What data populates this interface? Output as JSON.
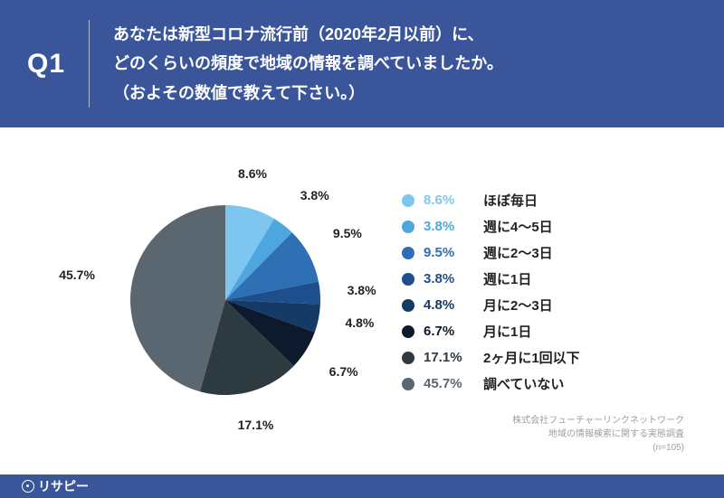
{
  "header": {
    "bg_color": "#3a5599",
    "badge": "Q1",
    "question_lines": [
      "あなたは新型コロナ流行前（2020年2月以前）に、",
      "どのくらいの頻度で地域の情報を調べていましたか。",
      "（およその数値で教えて下さい。）"
    ]
  },
  "chart": {
    "type": "pie",
    "background_color": "#ffffff",
    "start_angle_deg": -90,
    "radius": 105,
    "slices": [
      {
        "label": "ほぼ毎日",
        "value": 8.6,
        "color": "#7ec6ef",
        "pct_text": "8.6%"
      },
      {
        "label": "週に4〜5日",
        "value": 3.8,
        "color": "#4ea6de",
        "pct_text": "3.8%"
      },
      {
        "label": "週に2〜3日",
        "value": 9.5,
        "color": "#2f6fb4",
        "pct_text": "9.5%"
      },
      {
        "label": "週に1日",
        "value": 3.8,
        "color": "#1f4e8c",
        "pct_text": "3.8%"
      },
      {
        "label": "月に2〜3日",
        "value": 4.8,
        "color": "#163a66",
        "pct_text": "4.8%"
      },
      {
        "label": "月に1日",
        "value": 6.7,
        "color": "#0d1a2e",
        "pct_text": "6.7%"
      },
      {
        "label": "2ヶ月に1回以下",
        "value": 17.1,
        "color": "#2d3a3f",
        "pct_text": "17.1%"
      },
      {
        "label": "調べていない",
        "value": 45.7,
        "color": "#5a6770",
        "pct_text": "45.7%"
      }
    ],
    "label_fontsize": 14,
    "label_color": "#222222",
    "label_offset": 30
  },
  "legend": {
    "pct_fontsize": 15,
    "label_fontsize": 15,
    "dot_radius": 7
  },
  "footnote": {
    "lines": [
      "株式会社フューチャーリンクネットワーク",
      "地域の情報検索に関する実態調査",
      "(n=105)"
    ],
    "color": "#9aa0a6",
    "fontsize": 10
  },
  "footer": {
    "brand": "リサピー",
    "bg_color": "#3a5599"
  }
}
